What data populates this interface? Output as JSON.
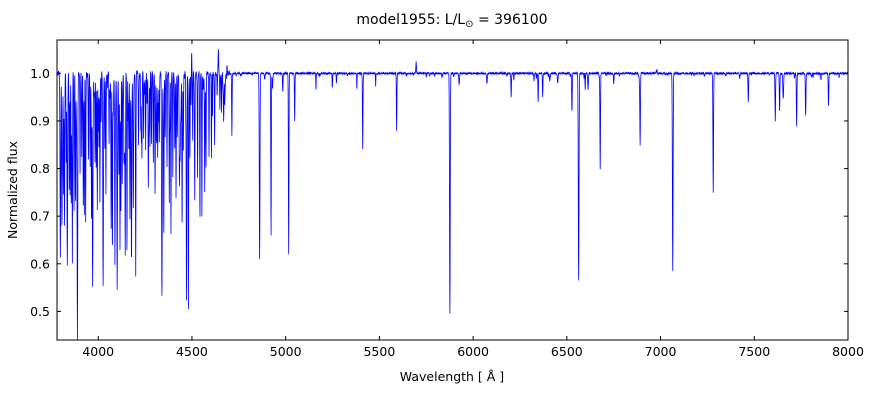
{
  "figure": {
    "title_prefix": "model1955: L/L",
    "title_sun": "⊙",
    "title_suffix": " = 396100",
    "xlabel": "Wavelength [ Å ]",
    "ylabel": "Normalized flux",
    "background_color": "#ffffff",
    "frame_color": "#000000"
  },
  "chart_data": {
    "type": "line",
    "title": "model1955: L/L⊙ = 396100",
    "xlabel": "Wavelength [ Å ]",
    "ylabel": "Normalized flux",
    "legend": "none",
    "grid": false,
    "line_color": "#0000ff",
    "line_width": 0.8,
    "xlim": [
      3780,
      8000
    ],
    "ylim": [
      0.44,
      1.07
    ],
    "xticks": [
      4000,
      4500,
      5000,
      5500,
      6000,
      6500,
      7000,
      7500,
      8000
    ],
    "yticks": [
      0.5,
      0.6,
      0.7,
      0.8,
      0.9,
      1.0
    ],
    "continuum": 1.0,
    "absorption_lines": [
      [
        3798,
        0.61,
        1.8
      ],
      [
        3806,
        0.74,
        1.2
      ],
      [
        3815,
        0.8,
        1.2
      ],
      [
        3820,
        0.68,
        1.4
      ],
      [
        3829,
        0.82,
        1.2
      ],
      [
        3835,
        0.6,
        1.8
      ],
      [
        3845,
        0.79,
        1.2
      ],
      [
        3850,
        0.83,
        1.2
      ],
      [
        3856,
        0.74,
        1.2
      ],
      [
        3862,
        0.77,
        1.2
      ],
      [
        3871,
        0.71,
        1.2
      ],
      [
        3878,
        0.81,
        1.2
      ],
      [
        3889,
        0.55,
        1.8
      ],
      [
        3903,
        0.8,
        1.2
      ],
      [
        3912,
        0.83,
        1.2
      ],
      [
        3920,
        0.73,
        1.2
      ],
      [
        3926,
        0.71,
        1.2
      ],
      [
        3933,
        0.76,
        1.2
      ],
      [
        3948,
        0.82,
        1.2
      ],
      [
        3957,
        0.85,
        1.2
      ],
      [
        3964,
        0.7,
        1.2
      ],
      [
        3970,
        0.55,
        1.8
      ],
      [
        3983,
        0.82,
        1.2
      ],
      [
        3995,
        0.73,
        1.2
      ],
      [
        4004,
        0.84,
        1.2
      ],
      [
        4009,
        0.75,
        1.2
      ],
      [
        4026,
        0.55,
        1.8
      ],
      [
        4035,
        0.84,
        1.2
      ],
      [
        4041,
        0.75,
        1.2
      ],
      [
        4058,
        0.85,
        1.2
      ],
      [
        4069,
        0.71,
        1.2
      ],
      [
        4076,
        0.73,
        1.2
      ],
      [
        4089,
        0.62,
        1.3
      ],
      [
        4101,
        0.55,
        1.8
      ],
      [
        4110,
        0.8,
        1.2
      ],
      [
        4116,
        0.63,
        1.3
      ],
      [
        4121,
        0.71,
        1.2
      ],
      [
        4128,
        0.77,
        1.2
      ],
      [
        4137,
        0.84,
        1.2
      ],
      [
        4144,
        0.66,
        1.3
      ],
      [
        4153,
        0.78,
        1.2
      ],
      [
        4163,
        0.84,
        1.2
      ],
      [
        4169,
        0.79,
        1.2
      ],
      [
        4187,
        0.81,
        1.2
      ],
      [
        4200,
        0.75,
        1.3
      ],
      [
        4215,
        0.86,
        1.2
      ],
      [
        4227,
        0.88,
        1.2
      ],
      [
        4233,
        0.82,
        1.2
      ],
      [
        4242,
        0.86,
        1.2
      ],
      [
        4253,
        0.84,
        1.2
      ],
      [
        4267,
        0.79,
        1.2
      ],
      [
        4276,
        0.87,
        1.2
      ],
      [
        4284,
        0.85,
        1.2
      ],
      [
        4294,
        0.83,
        1.2
      ],
      [
        4303,
        0.86,
        1.2
      ],
      [
        4310,
        0.88,
        1.2
      ],
      [
        4317,
        0.82,
        1.2
      ],
      [
        4326,
        0.86,
        1.2
      ],
      [
        4340,
        0.57,
        1.8
      ],
      [
        4350,
        0.78,
        1.2
      ],
      [
        4357,
        0.86,
        1.2
      ],
      [
        4367,
        0.82,
        1.2
      ],
      [
        4379,
        0.73,
        1.2
      ],
      [
        4388,
        0.66,
        1.3
      ],
      [
        4398,
        0.84,
        1.2
      ],
      [
        4415,
        0.77,
        1.2
      ],
      [
        4422,
        0.86,
        1.2
      ],
      [
        4437,
        0.85,
        1.2
      ],
      [
        4447,
        0.78,
        1.2
      ],
      [
        4454,
        0.84,
        1.2
      ],
      [
        4471,
        0.6,
        1.6
      ],
      [
        4481,
        0.5,
        1.4
      ],
      [
        4489,
        0.82,
        1.2
      ],
      [
        4504,
        0.86,
        1.2
      ],
      [
        4515,
        0.82,
        1.2
      ],
      [
        4530,
        0.78,
        1.2
      ],
      [
        4542,
        0.8,
        1.2
      ],
      [
        4553,
        0.7,
        1.2
      ],
      [
        4568,
        0.76,
        1.2
      ],
      [
        4575,
        0.8,
        1.2
      ],
      [
        4591,
        0.83,
        1.2
      ],
      [
        4604,
        0.85,
        1.2
      ],
      [
        4621,
        0.89,
        1.2
      ],
      [
        4649,
        0.91,
        1.2
      ],
      [
        4658,
        0.92,
        1.2
      ],
      [
        4713,
        0.87,
        1.3
      ],
      [
        4861,
        0.61,
        1.8
      ],
      [
        4922,
        0.66,
        1.4
      ],
      [
        5016,
        0.62,
        1.4
      ],
      [
        5048,
        0.9,
        1.3
      ],
      [
        5411,
        0.84,
        1.4
      ],
      [
        5592,
        0.88,
        1.4
      ],
      [
        5876,
        0.495,
        1.8
      ],
      [
        6203,
        0.95,
        1.4
      ],
      [
        6347,
        0.94,
        1.4
      ],
      [
        6371,
        0.95,
        1.4
      ],
      [
        6527,
        0.93,
        1.4
      ],
      [
        6563,
        0.575,
        1.9
      ],
      [
        6678,
        0.8,
        1.5
      ],
      [
        6891,
        0.85,
        1.5
      ],
      [
        7065,
        0.585,
        1.8
      ],
      [
        7281,
        0.75,
        1.6
      ],
      [
        7468,
        0.94,
        1.5
      ],
      [
        7612,
        0.9,
        1.5
      ],
      [
        7635,
        0.92,
        1.5
      ],
      [
        7726,
        0.89,
        1.5
      ],
      [
        7774,
        0.91,
        1.6
      ],
      [
        7896,
        0.93,
        1.5
      ]
    ],
    "emission_lines": [
      [
        4498,
        1.05,
        1.3
      ],
      [
        4634,
        1.04,
        1.4
      ],
      [
        4641,
        1.05,
        1.4
      ],
      [
        4650,
        1.03,
        1.4
      ],
      [
        4686,
        1.025,
        1.5
      ],
      [
        5696,
        1.025,
        1.5
      ],
      [
        6980,
        1.015,
        1.5
      ]
    ],
    "line_forest": [
      {
        "range": [
          3800,
          4700
        ],
        "count": 150,
        "max_depth": 0.22,
        "sigma_range": [
          0.7,
          1.8
        ],
        "seed": 11
      },
      {
        "range": [
          4700,
          8000
        ],
        "count": 80,
        "max_depth": 0.05,
        "sigma_range": [
          0.8,
          2.0
        ],
        "seed": 23
      }
    ],
    "noise": {
      "seed": 5,
      "blue_amplitude": 0.006,
      "red_amplitude": 0.002,
      "transition": 4700
    }
  }
}
